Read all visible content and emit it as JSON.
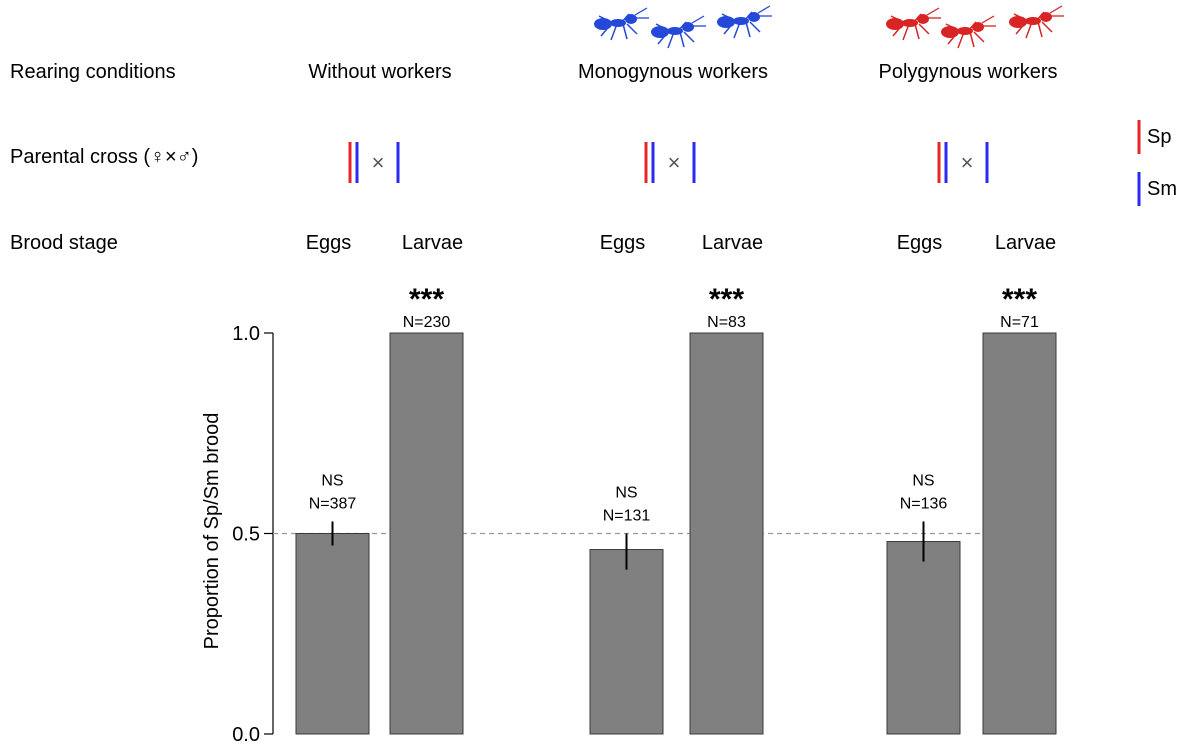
{
  "row_labels": {
    "rearing": "Rearing conditions",
    "cross": "Parental cross (♀×♂)",
    "stage": "Brood stage"
  },
  "colors": {
    "sp": "#e8242b",
    "sm": "#2b2bef",
    "bar": "#808080",
    "ant_mono": "#2448d8",
    "ant_poly": "#d82424"
  },
  "legend": [
    {
      "label": "Sp",
      "color": "#e8242b"
    },
    {
      "label": "Sm",
      "color": "#2b2bef"
    }
  ],
  "cross_symbol": "×",
  "groups": [
    {
      "condition": "Without workers",
      "ant_icon": "none"
    },
    {
      "condition": "Monogynous workers",
      "ant_icon": "blue-ant-icon"
    },
    {
      "condition": "Polygynous workers",
      "ant_icon": "red-ant-icon"
    }
  ],
  "chart_data": {
    "type": "bar",
    "ylabel": "Proportion of Sp/Sm brood",
    "ylim": [
      0,
      1
    ],
    "yticks": [
      0.0,
      0.5,
      1.0
    ],
    "ytick_labels": [
      "0.0",
      "0.5",
      "1.0"
    ],
    "reference_line": 0.5,
    "bars": [
      {
        "group": "Without workers",
        "stage": "Eggs",
        "value": 0.5,
        "err_low": 0.47,
        "err_high": 0.53,
        "sig": "NS",
        "n": "N=387"
      },
      {
        "group": "Without workers",
        "stage": "Larvae",
        "value": 1.0,
        "sig": "***",
        "n": "N=230"
      },
      {
        "group": "Monogynous workers",
        "stage": "Eggs",
        "value": 0.46,
        "err_low": 0.41,
        "err_high": 0.5,
        "sig": "NS",
        "n": "N=131"
      },
      {
        "group": "Monogynous workers",
        "stage": "Larvae",
        "value": 1.0,
        "sig": "***",
        "n": "N=83"
      },
      {
        "group": "Polygynous workers",
        "stage": "Eggs",
        "value": 0.48,
        "err_low": 0.43,
        "err_high": 0.53,
        "sig": "NS",
        "n": "N=136"
      },
      {
        "group": "Polygynous workers",
        "stage": "Larvae",
        "value": 1.0,
        "sig": "***",
        "n": "N=71"
      }
    ]
  }
}
